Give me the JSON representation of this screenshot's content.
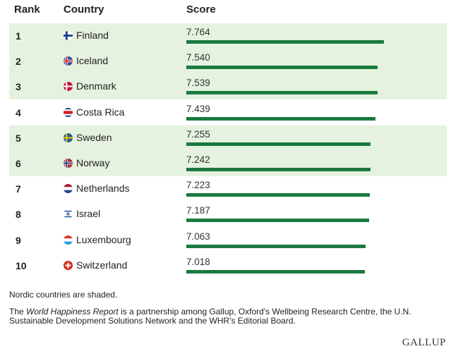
{
  "headers": {
    "rank": "Rank",
    "country": "Country",
    "score": "Score"
  },
  "chart_data": {
    "type": "bar",
    "orientation": "horizontal",
    "xlim": [
      0,
      10
    ],
    "categories": [
      "Finland",
      "Iceland",
      "Denmark",
      "Costa Rica",
      "Sweden",
      "Norway",
      "Netherlands",
      "Israel",
      "Luxembourg",
      "Switzerland"
    ],
    "rows": [
      {
        "rank": "1",
        "country": "Finland",
        "score": "7.764",
        "value": 7.764,
        "nordic": true,
        "flag": "finland-flag-icon"
      },
      {
        "rank": "2",
        "country": "Iceland",
        "score": "7.540",
        "value": 7.54,
        "nordic": true,
        "flag": "iceland-flag-icon"
      },
      {
        "rank": "3",
        "country": "Denmark",
        "score": "7.539",
        "value": 7.539,
        "nordic": true,
        "flag": "denmark-flag-icon"
      },
      {
        "rank": "4",
        "country": "Costa Rica",
        "score": "7.439",
        "value": 7.439,
        "nordic": false,
        "flag": "costa-rica-flag-icon"
      },
      {
        "rank": "5",
        "country": "Sweden",
        "score": "7.255",
        "value": 7.255,
        "nordic": true,
        "flag": "sweden-flag-icon"
      },
      {
        "rank": "6",
        "country": "Norway",
        "score": "7.242",
        "value": 7.242,
        "nordic": true,
        "flag": "norway-flag-icon"
      },
      {
        "rank": "7",
        "country": "Netherlands",
        "score": "7.223",
        "value": 7.223,
        "nordic": false,
        "flag": "netherlands-flag-icon"
      },
      {
        "rank": "8",
        "country": "Israel",
        "score": "7.187",
        "value": 7.187,
        "nordic": false,
        "flag": "israel-flag-icon"
      },
      {
        "rank": "9",
        "country": "Luxembourg",
        "score": "7.063",
        "value": 7.063,
        "nordic": false,
        "flag": "luxembourg-flag-icon"
      },
      {
        "rank": "10",
        "country": "Switzerland",
        "score": "7.018",
        "value": 7.018,
        "nordic": false,
        "flag": "switzerland-flag-icon"
      }
    ]
  },
  "colors": {
    "bar": "#1a7a3e",
    "shade": "#e5f2df"
  },
  "footnote": "Nordic countries are shaded.",
  "credit": {
    "prefix": "The ",
    "title": "World Happiness Report",
    "suffix": " is a partnership among Gallup, Oxford's Wellbeing Research Centre, the U.N. Sustainable Development Solutions Network and the WHR's Editorial Board."
  },
  "logo": "GALLUP"
}
